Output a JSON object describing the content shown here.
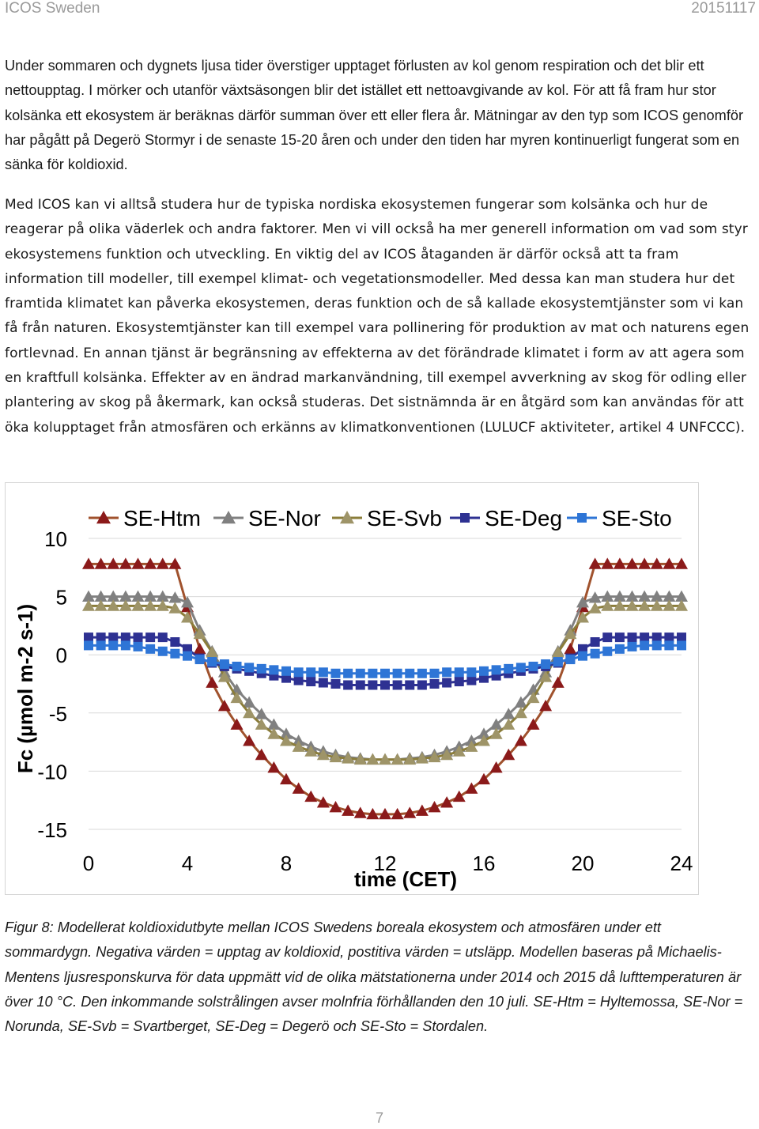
{
  "header": {
    "left": "ICOS Sweden",
    "right": "20151117"
  },
  "paragraphs": {
    "p1": "Under sommaren och dygnets ljusa tider överstiger upptaget förlusten av kol genom respiration och det blir ett nettoupptag. I mörker och utanför växtsäsongen blir det istället ett nettoavgivande av kol. För att få fram hur stor kolsänka ett ekosystem är beräknas därför summan över ett eller flera år. Mätningar av den typ som ICOS genomför har pågått på Degerö Stormyr i de senaste 15-20 åren och under den tiden har myren kontinuerligt fungerat som en sänka för koldioxid.",
    "p2": "Med ICOS kan vi alltså studera hur de typiska nordiska ekosystemen fungerar som kolsänka och hur de reagerar på olika väderlek och andra faktorer. Men vi vill också ha mer generell information om vad som styr ekosystemens funktion och utveckling. En viktig del av ICOS åtaganden är därför också att ta fram information till modeller, till exempel klimat- och vegetationsmodeller. Med dessa kan man studera hur det framtida klimatet kan påverka ekosystemen, deras funktion och de så kallade ekosystemtjänster som vi kan få från naturen. Ekosystemtjänster kan till exempel vara pollinering för produktion av mat och naturens egen fortlevnad. En annan tjänst är begränsning av effekterna av det förändrade klimatet i form av att agera som en kraftfull kolsänka. Effekter av en ändrad markanvändning, till exempel avverkning av skog för odling eller plantering av skog på åkermark, kan också studeras. Det sistnämnda är en åtgärd som kan användas för att öka kolupptaget från atmosfären och erkänns av klimatkonventionen (LULUCF aktiviteter, artikel 4 UNFCCC)."
  },
  "chart_data": {
    "type": "line",
    "xlabel": "time  (CET)",
    "ylabel": "Fc  (µmol m-2 s-1)",
    "xlim": [
      0,
      24
    ],
    "ylim": [
      -15,
      10
    ],
    "xticks": [
      "0",
      "4",
      "8",
      "12",
      "16",
      "20",
      "24"
    ],
    "yticks": [
      "10",
      "5",
      "0",
      "-5",
      "-10",
      "-15"
    ],
    "grid": "horizontal",
    "legend_position": "top",
    "x": [
      0,
      0.5,
      1,
      1.5,
      2,
      2.5,
      3,
      3.5,
      4,
      4.5,
      5,
      5.5,
      6,
      6.5,
      7,
      7.5,
      8,
      8.5,
      9,
      9.5,
      10,
      10.5,
      11,
      11.5,
      12,
      12.5,
      13,
      13.5,
      14,
      14.5,
      15,
      15.5,
      16,
      16.5,
      17,
      17.5,
      18,
      18.5,
      19,
      19.5,
      20,
      20.5,
      21,
      21.5,
      22,
      22.5,
      23,
      23.5,
      24
    ],
    "series": [
      {
        "name": "SE-Htm",
        "color": "#8b1a1a",
        "line_color": "#a0522d",
        "marker": "triangle",
        "values": [
          7.8,
          7.8,
          7.8,
          7.8,
          7.8,
          7.8,
          7.8,
          7.8,
          4.1,
          0.5,
          -2.4,
          -4.4,
          -6.0,
          -7.4,
          -8.6,
          -9.7,
          -10.7,
          -11.5,
          -12.2,
          -12.7,
          -13.1,
          -13.4,
          -13.6,
          -13.7,
          -13.7,
          -13.7,
          -13.6,
          -13.4,
          -13.1,
          -12.7,
          -12.2,
          -11.5,
          -10.7,
          -9.7,
          -8.6,
          -7.4,
          -6.0,
          -4.4,
          -2.4,
          0.5,
          4.1,
          7.8,
          7.8,
          7.8,
          7.8,
          7.8,
          7.8,
          7.8,
          7.8
        ]
      },
      {
        "name": "SE-Nor",
        "color": "#808080",
        "line_color": "#808080",
        "marker": "triangle",
        "values": [
          5.0,
          5.0,
          5.0,
          5.0,
          5.0,
          5.0,
          5.0,
          4.9,
          4.5,
          2.1,
          0.3,
          -1.5,
          -3.0,
          -4.1,
          -5.1,
          -6.0,
          -6.8,
          -7.4,
          -7.9,
          -8.3,
          -8.6,
          -8.8,
          -8.9,
          -9.0,
          -9.0,
          -9.0,
          -8.9,
          -8.8,
          -8.6,
          -8.3,
          -7.9,
          -7.4,
          -6.8,
          -6.0,
          -5.1,
          -4.1,
          -3.0,
          -1.5,
          0.3,
          2.1,
          4.5,
          4.9,
          5.0,
          5.0,
          5.0,
          5.0,
          5.0,
          5.0,
          5.0
        ]
      },
      {
        "name": "SE-Svb",
        "color": "#9e9468",
        "line_color": "#8b7d3a",
        "marker": "triangle",
        "values": [
          4.2,
          4.2,
          4.2,
          4.2,
          4.2,
          4.2,
          4.2,
          4.0,
          3.2,
          1.8,
          0.2,
          -1.9,
          -3.7,
          -5.0,
          -6.0,
          -6.8,
          -7.4,
          -7.9,
          -8.3,
          -8.6,
          -8.8,
          -8.9,
          -9.0,
          -9.0,
          -9.0,
          -9.0,
          -9.0,
          -8.9,
          -8.8,
          -8.6,
          -8.3,
          -7.9,
          -7.4,
          -6.8,
          -6.0,
          -5.0,
          -3.7,
          -1.9,
          0.2,
          1.8,
          3.2,
          4.0,
          4.2,
          4.2,
          4.2,
          4.2,
          4.2,
          4.2,
          4.2
        ]
      },
      {
        "name": "SE-Deg",
        "color": "#2e3192",
        "line_color": "#2e3192",
        "marker": "square",
        "values": [
          1.5,
          1.5,
          1.5,
          1.5,
          1.5,
          1.5,
          1.5,
          1.1,
          0.5,
          -0.3,
          -0.7,
          -1.0,
          -1.2,
          -1.4,
          -1.6,
          -1.8,
          -2.0,
          -2.2,
          -2.3,
          -2.4,
          -2.5,
          -2.6,
          -2.6,
          -2.6,
          -2.6,
          -2.6,
          -2.6,
          -2.6,
          -2.5,
          -2.4,
          -2.3,
          -2.2,
          -2.0,
          -1.8,
          -1.6,
          -1.4,
          -1.2,
          -1.0,
          -0.7,
          -0.3,
          0.5,
          1.1,
          1.5,
          1.5,
          1.5,
          1.5,
          1.5,
          1.5,
          1.5
        ]
      },
      {
        "name": "SE-Sto",
        "color": "#2e75d6",
        "line_color": "#2e75d6",
        "marker": "square",
        "values": [
          0.8,
          0.8,
          0.8,
          0.8,
          0.7,
          0.5,
          0.3,
          0.1,
          -0.1,
          -0.4,
          -0.6,
          -0.8,
          -1.0,
          -1.1,
          -1.2,
          -1.3,
          -1.4,
          -1.5,
          -1.5,
          -1.5,
          -1.6,
          -1.6,
          -1.6,
          -1.6,
          -1.6,
          -1.6,
          -1.6,
          -1.6,
          -1.6,
          -1.5,
          -1.5,
          -1.5,
          -1.4,
          -1.3,
          -1.2,
          -1.1,
          -1.0,
          -0.8,
          -0.6,
          -0.4,
          -0.1,
          0.1,
          0.3,
          0.5,
          0.7,
          0.8,
          0.8,
          0.8,
          0.8
        ]
      }
    ]
  },
  "caption": "Figur 8: Modellerat koldioxidutbyte mellan ICOS Swedens boreala ekosystem och atmosfären under ett sommardygn. Negativa värden = upptag av koldioxid, postitiva värden = utsläpp. Modellen baseras på Michaelis-Mentens ljusresponskurva för data uppmätt vid de olika mätstationerna under 2014 och 2015 då lufttemperaturen är över 10 °C. Den inkommande solstrålingen avser molnfria förhållanden den 10 juli. SE-Htm = Hyltemossa, SE-Nor = Norunda, SE-Svb = Svartberget, SE-Deg = Degerö och SE-Sto = Stordalen.",
  "page_number": "7"
}
